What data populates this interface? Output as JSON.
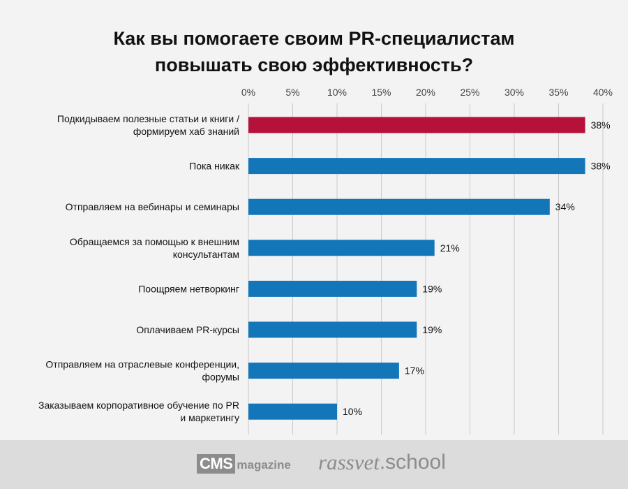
{
  "chart_data": {
    "type": "bar",
    "orientation": "horizontal",
    "title_lines": [
      "Как вы помогаете своим PR-специалистам",
      "повышать свою эффективность?"
    ],
    "x_ticks": [
      "0%",
      "5%",
      "10%",
      "15%",
      "20%",
      "25%",
      "30%",
      "35%",
      "40%"
    ],
    "xlim": [
      0,
      40
    ],
    "axis_position": "top",
    "grid": true,
    "categories": [
      [
        "Подкидываем полезные статьи и книги /",
        "формируем хаб знаний"
      ],
      [
        "Пока никак"
      ],
      [
        "Отправляем на вебинары и семинары"
      ],
      [
        "Обращаемся за помощью к внешним",
        "консультантам"
      ],
      [
        "Поощряем нетворкинг"
      ],
      [
        "Оплачиваем PR-курсы"
      ],
      [
        "Отправляем на отраслевые конференции,",
        "форумы"
      ],
      [
        "Заказываем корпоративное обучение по PR",
        "и маркетингу"
      ]
    ],
    "values": [
      38,
      38,
      34,
      21,
      19,
      19,
      17,
      10
    ],
    "value_labels": [
      "38%",
      "38%",
      "34%",
      "21%",
      "19%",
      "19%",
      "17%",
      "10%"
    ],
    "bar_colors": [
      "#b5113a",
      "#1276b8",
      "#1276b8",
      "#1276b8",
      "#1276b8",
      "#1276b8",
      "#1276b8",
      "#1276b8"
    ]
  },
  "footer": {
    "cms_box": "CMS",
    "cms_word": "magazine",
    "rassvet_italic": "rassvet",
    "rassvet_school": ".school"
  },
  "colors": {
    "background": "#f3f3f3",
    "footer_bg": "#dcdcdc",
    "grid": "#c9c9c9",
    "text": "#111111",
    "logo_gray": "#8c8c8c"
  }
}
